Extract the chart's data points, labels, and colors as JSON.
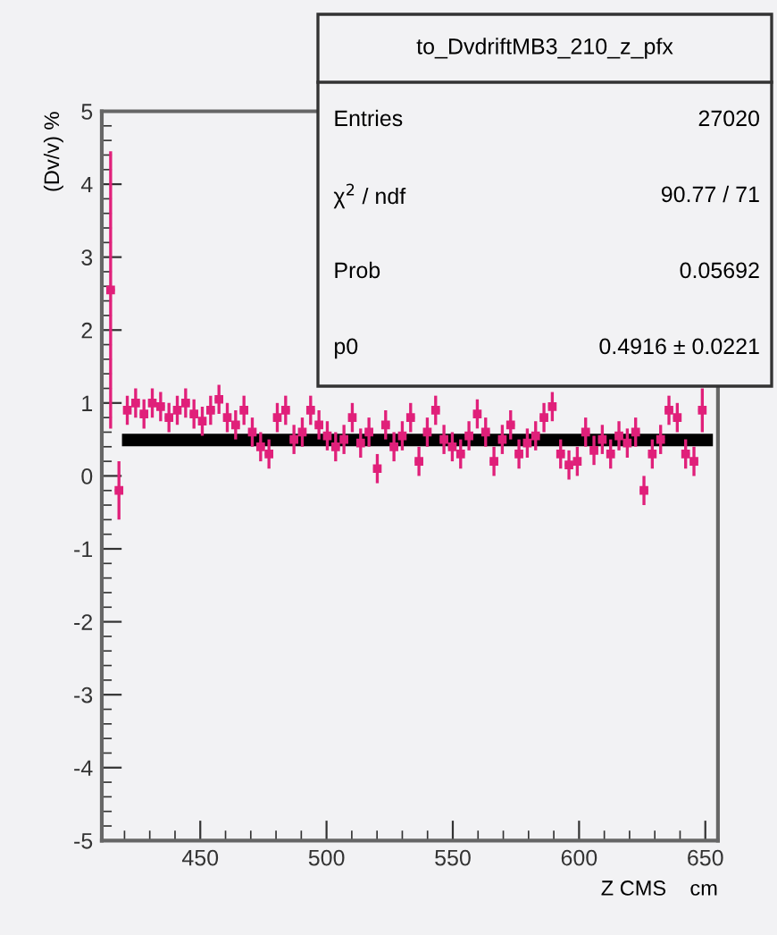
{
  "chart_data": {
    "type": "scatter",
    "title": "to_DvdriftMB3_210_z_pfx",
    "xlabel": "Z CMS    cm",
    "ylabel": "(Dv/v) %",
    "annotations": [
      "Entries",
      "27020",
      "χ$^{2}$ / ndf",
      "90.77 / 71",
      "Prob",
      "0.05692",
      "p0",
      "0.4916 ± 0.0221"
    ],
    "xlim": [
      411,
      655
    ],
    "ylim": [
      -5,
      5
    ],
    "xticks": [
      450,
      500,
      550,
      600,
      650
    ],
    "yticks": [
      -5,
      -4,
      -3,
      -2,
      -1,
      0,
      1,
      2,
      3,
      4,
      5
    ],
    "grid": false,
    "series": [
      {
        "color": "#e0207a",
        "marker": "square",
        "x": [
          414.5,
          417.8,
          421.1,
          424.4,
          427.7,
          431.0,
          434.3,
          437.6,
          440.9,
          444.2,
          447.5,
          450.8,
          454.1,
          457.4,
          460.7,
          464.0,
          467.3,
          470.6,
          473.9,
          477.2,
          480.5,
          483.8,
          487.1,
          490.4,
          493.7,
          497.0,
          500.3,
          503.6,
          506.9,
          510.2,
          513.5,
          516.8,
          520.1,
          523.4,
          526.7,
          530.0,
          533.3,
          536.6,
          539.9,
          543.2,
          546.5,
          549.8,
          553.1,
          556.4,
          559.7,
          563.0,
          566.3,
          569.6,
          572.9,
          576.2,
          579.5,
          582.8,
          586.1,
          589.4,
          592.7,
          596.0,
          599.3,
          602.6,
          605.9,
          609.2,
          612.5,
          615.8,
          619.1,
          622.4,
          625.7,
          629.0,
          632.3,
          635.6,
          638.9,
          642.2,
          645.5,
          648.8
        ],
        "values": [
          2.55,
          -0.2,
          0.9,
          1.0,
          0.85,
          1.0,
          0.95,
          0.8,
          0.9,
          1.0,
          0.85,
          0.75,
          0.9,
          1.05,
          0.8,
          0.7,
          0.9,
          0.6,
          0.4,
          0.3,
          0.8,
          0.9,
          0.5,
          0.6,
          0.9,
          0.7,
          0.55,
          0.4,
          0.5,
          0.8,
          0.45,
          0.6,
          0.1,
          0.7,
          0.4,
          0.55,
          0.8,
          0.2,
          0.6,
          0.9,
          0.5,
          0.4,
          0.3,
          0.55,
          0.85,
          0.6,
          0.2,
          0.5,
          0.7,
          0.3,
          0.45,
          0.55,
          0.8,
          0.95,
          0.3,
          0.15,
          0.2,
          0.6,
          0.35,
          0.5,
          0.3,
          0.55,
          0.45,
          0.6,
          -0.2,
          0.3,
          0.5,
          0.9,
          0.8,
          0.3,
          0.2,
          0.9
        ],
        "errors": [
          1.9,
          0.4,
          0.2,
          0.2,
          0.2,
          0.2,
          0.2,
          0.2,
          0.2,
          0.2,
          0.2,
          0.2,
          0.2,
          0.2,
          0.2,
          0.2,
          0.2,
          0.2,
          0.2,
          0.2,
          0.2,
          0.2,
          0.2,
          0.2,
          0.2,
          0.2,
          0.2,
          0.2,
          0.2,
          0.2,
          0.2,
          0.2,
          0.2,
          0.2,
          0.2,
          0.2,
          0.2,
          0.2,
          0.2,
          0.2,
          0.2,
          0.2,
          0.2,
          0.2,
          0.2,
          0.2,
          0.2,
          0.2,
          0.2,
          0.2,
          0.2,
          0.2,
          0.2,
          0.2,
          0.2,
          0.2,
          0.2,
          0.2,
          0.2,
          0.2,
          0.2,
          0.2,
          0.2,
          0.2,
          0.2,
          0.2,
          0.2,
          0.2,
          0.2,
          0.2,
          0.2,
          0.3
        ],
        "xerrors": [
          1.6,
          1.6,
          1.6,
          1.6,
          1.6,
          1.6,
          1.6,
          1.6,
          1.6,
          1.6,
          1.6,
          1.6,
          1.6,
          1.6,
          1.6,
          1.6,
          1.6,
          1.6,
          1.6,
          1.6,
          1.6,
          1.6,
          1.6,
          1.6,
          1.6,
          1.6,
          1.6,
          1.6,
          1.6,
          1.6,
          1.6,
          1.6,
          1.6,
          1.6,
          1.6,
          1.6,
          1.6,
          1.6,
          1.6,
          1.6,
          1.6,
          1.6,
          1.6,
          1.6,
          1.6,
          1.6,
          1.6,
          1.6,
          1.6,
          1.6,
          1.6,
          1.6,
          1.6,
          1.6,
          1.6,
          1.6,
          1.6,
          1.6,
          1.6,
          1.6,
          1.6,
          1.6,
          1.6,
          1.6,
          1.6,
          1.6,
          1.6,
          1.6,
          1.6,
          1.6,
          1.6,
          1.6
        ]
      },
      {
        "type": "line",
        "marker": "none",
        "color": "#000000",
        "x": [
          419,
          653
        ],
        "values": [
          0.4916,
          0.4916
        ]
      }
    ]
  }
}
